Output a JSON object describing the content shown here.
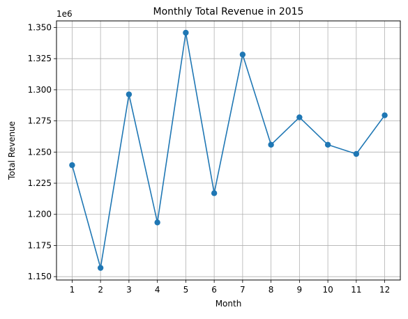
{
  "chart_data": {
    "type": "line",
    "title": "Monthly Total Revenue in 2015",
    "xlabel": "Month",
    "ylabel": "Total Revenue",
    "y_offset_label": "1e6",
    "x": [
      1,
      2,
      3,
      4,
      5,
      6,
      7,
      8,
      9,
      10,
      11,
      12
    ],
    "xticks": [
      "1",
      "2",
      "3",
      "4",
      "5",
      "6",
      "7",
      "8",
      "9",
      "10",
      "11",
      "12"
    ],
    "yticks": [
      1.15,
      1.175,
      1.2,
      1.225,
      1.25,
      1.275,
      1.3,
      1.325,
      1.35
    ],
    "ytick_labels": [
      "1.150",
      "1.175",
      "1.200",
      "1.225",
      "1.250",
      "1.275",
      "1.300",
      "1.325",
      "1.350"
    ],
    "xlim": [
      0.45,
      12.55
    ],
    "ylim": [
      1.1473,
      1.3553
    ],
    "grid": true,
    "series": [
      {
        "color": "#1f77b4",
        "marker": "circle",
        "values": [
          1.2395,
          1.157,
          1.2963,
          1.1935,
          1.3458,
          1.217,
          1.3283,
          1.2559,
          1.2779,
          1.2559,
          1.2485,
          1.2795
        ]
      }
    ]
  }
}
